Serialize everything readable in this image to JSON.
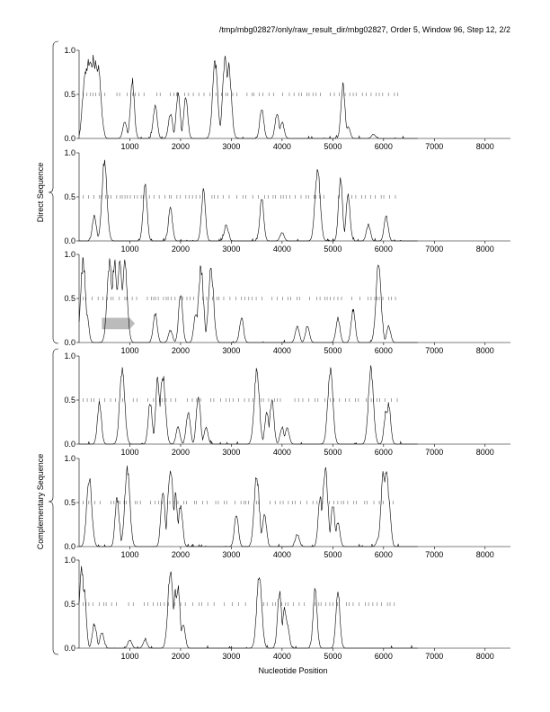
{
  "header": {
    "path_text": "/tmp/mbg02827/only/raw_result_dir/mbg02827, Order 5, Window 96, Step 12, 2/2"
  },
  "figure": {
    "xlabel": "Nucleotide Position",
    "group_labels": {
      "direct": "Direct Sequence",
      "complementary": "Complementary Sequence"
    }
  },
  "chart_data": {
    "type": "line",
    "title": "",
    "xlabel": "Nucleotide Position",
    "xlim": [
      0,
      8500
    ],
    "ylim": [
      0,
      1
    ],
    "x_ticks": [
      1000,
      2000,
      3000,
      4000,
      5000,
      6000,
      7000,
      8000
    ],
    "y_ticks": [
      "0.0",
      "0.5",
      "1.0"
    ],
    "line_color": "#000000",
    "dash_color": "#666666",
    "band_color": "#bbbbbb",
    "sequence_end": 6280,
    "panels": [
      {
        "group": "direct",
        "frame": 1,
        "peaks": [
          [
            90,
            0.55
          ],
          [
            130,
            0.85
          ],
          [
            180,
            0.98
          ],
          [
            230,
            0.96
          ],
          [
            280,
            0.97
          ],
          [
            330,
            0.95
          ],
          [
            380,
            0.85
          ],
          [
            430,
            0.35
          ],
          [
            900,
            0.2
          ],
          [
            1050,
            0.7
          ],
          [
            1500,
            0.4
          ],
          [
            1800,
            0.3
          ],
          [
            1950,
            0.55
          ],
          [
            2100,
            0.5
          ],
          [
            2680,
            0.92
          ],
          [
            2880,
            0.98
          ],
          [
            2950,
            0.9
          ],
          [
            3600,
            0.35
          ],
          [
            3900,
            0.3
          ],
          [
            4000,
            0.2
          ],
          [
            5200,
            0.65
          ],
          [
            5300,
            0.15
          ],
          [
            5800,
            0.05
          ]
        ]
      },
      {
        "group": "direct",
        "frame": 2,
        "peaks": [
          [
            300,
            0.3
          ],
          [
            500,
            0.95
          ],
          [
            1300,
            0.7
          ],
          [
            1800,
            0.4
          ],
          [
            2450,
            0.6
          ],
          [
            2900,
            0.2
          ],
          [
            3600,
            0.5
          ],
          [
            4000,
            0.1
          ],
          [
            4700,
            0.9
          ],
          [
            5150,
            0.75
          ],
          [
            5300,
            0.55
          ],
          [
            5700,
            0.2
          ],
          [
            6050,
            0.3
          ]
        ]
      },
      {
        "group": "direct",
        "frame": 3,
        "peaks": [
          [
            80,
            0.98
          ],
          [
            150,
            0.35
          ],
          [
            600,
            0.98
          ],
          [
            700,
            0.98
          ],
          [
            800,
            0.98
          ],
          [
            900,
            0.95
          ],
          [
            1500,
            0.35
          ],
          [
            1800,
            0.15
          ],
          [
            2000,
            0.6
          ],
          [
            2300,
            0.35
          ],
          [
            2400,
            0.9
          ],
          [
            2600,
            0.9
          ],
          [
            3200,
            0.3
          ],
          [
            4300,
            0.2
          ],
          [
            4500,
            0.2
          ],
          [
            5100,
            0.3
          ],
          [
            5400,
            0.4
          ],
          [
            5900,
            0.95
          ],
          [
            6100,
            0.2
          ]
        ],
        "band": {
          "x_start": 450,
          "x_end": 1100,
          "y_low": 0.15,
          "y_high": 0.28
        }
      },
      {
        "group": "complementary",
        "frame": 1,
        "peaks": [
          [
            400,
            0.5
          ],
          [
            850,
            0.9
          ],
          [
            1400,
            0.5
          ],
          [
            1550,
            0.8
          ],
          [
            1650,
            0.85
          ],
          [
            1950,
            0.2
          ],
          [
            2150,
            0.4
          ],
          [
            2350,
            0.6
          ],
          [
            2500,
            0.2
          ],
          [
            3500,
            0.9
          ],
          [
            3700,
            0.4
          ],
          [
            3800,
            0.55
          ],
          [
            4000,
            0.2
          ],
          [
            4100,
            0.2
          ],
          [
            4950,
            0.9
          ],
          [
            5750,
            0.9
          ],
          [
            6050,
            0.4
          ],
          [
            6100,
            0.5
          ]
        ]
      },
      {
        "group": "complementary",
        "frame": 2,
        "peaks": [
          [
            200,
            0.85
          ],
          [
            750,
            0.6
          ],
          [
            950,
            0.95
          ],
          [
            1650,
            0.7
          ],
          [
            1800,
            0.95
          ],
          [
            1900,
            0.6
          ],
          [
            2000,
            0.5
          ],
          [
            3100,
            0.4
          ],
          [
            3500,
            0.85
          ],
          [
            3650,
            0.4
          ],
          [
            4300,
            0.15
          ],
          [
            4750,
            0.6
          ],
          [
            4850,
            0.95
          ],
          [
            5000,
            0.5
          ],
          [
            5100,
            0.3
          ],
          [
            5900,
            0.1
          ],
          [
            6000,
            0.9
          ],
          [
            6050,
            0.95
          ],
          [
            6100,
            0.6
          ]
        ]
      },
      {
        "group": "complementary",
        "frame": 3,
        "peaks": [
          [
            50,
            0.95
          ],
          [
            100,
            0.7
          ],
          [
            300,
            0.3
          ],
          [
            450,
            0.2
          ],
          [
            1000,
            0.1
          ],
          [
            1300,
            0.1
          ],
          [
            1800,
            0.95
          ],
          [
            1900,
            0.7
          ],
          [
            1950,
            0.75
          ],
          [
            2050,
            0.3
          ],
          [
            3550,
            0.9
          ],
          [
            3950,
            0.7
          ],
          [
            4050,
            0.5
          ],
          [
            4100,
            0.3
          ],
          [
            4650,
            0.7
          ],
          [
            5100,
            0.7
          ]
        ]
      }
    ]
  }
}
